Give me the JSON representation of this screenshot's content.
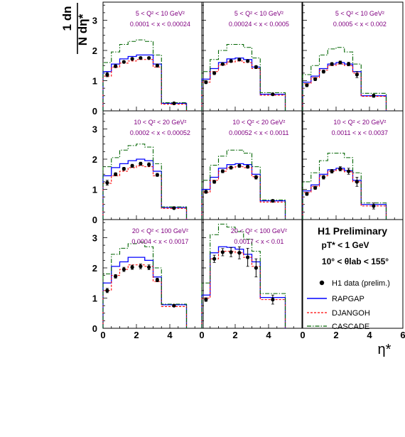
{
  "figure": {
    "ylabel_top": "1 dn",
    "ylabel_bottom": "N dη*",
    "xlabel": "η*",
    "y_ticks": [
      "0",
      "1",
      "2",
      "3"
    ],
    "x_ticks": [
      "0",
      "2",
      "4",
      "6"
    ]
  },
  "colors": {
    "data": "#000000",
    "rapgap": "#0000ff",
    "djangoh": "#ff0000",
    "cascade": "#006400",
    "annotation": "#800080"
  },
  "legend": {
    "title": "H1 Preliminary",
    "cut1": "pT* < 1 GeV",
    "cut2": "10° < θlab < 155°",
    "entries": [
      {
        "name": "H1 data (prelim.)",
        "style": "marker"
      },
      {
        "name": "RAPGAP",
        "style": "solid"
      },
      {
        "name": "DJANGOH",
        "style": "dashed"
      },
      {
        "name": "CASCADE",
        "style": "dashdot"
      }
    ]
  },
  "chart_data": [
    {
      "type": "line",
      "panel": 1,
      "annotation_q2": "5 < Q² < 10 GeV²",
      "annotation_x": "0.0001 < x < 0.00024",
      "xlim": [
        0,
        6
      ],
      "ylim": [
        0,
        3.6
      ],
      "bin_edges": [
        0,
        0.5,
        1,
        1.5,
        2,
        2.5,
        3,
        3.5,
        5
      ],
      "data": {
        "x": [
          0.25,
          0.75,
          1.25,
          1.75,
          2.25,
          2.75,
          3.25,
          4.25
        ],
        "y": [
          1.2,
          1.48,
          1.62,
          1.72,
          1.75,
          1.75,
          1.5,
          0.25
        ],
        "err": [
          0.07,
          0.05,
          0.04,
          0.04,
          0.04,
          0.04,
          0.05,
          0.02
        ]
      },
      "series": [
        {
          "name": "RAPGAP",
          "values": [
            1.3,
            1.55,
            1.72,
            1.8,
            1.85,
            1.85,
            1.55,
            0.25
          ]
        },
        {
          "name": "DJANGOH",
          "values": [
            1.15,
            1.45,
            1.58,
            1.65,
            1.7,
            1.7,
            1.45,
            0.22
          ]
        },
        {
          "name": "CASCADE",
          "values": [
            1.6,
            1.95,
            2.2,
            2.3,
            2.35,
            2.3,
            1.85,
            0.27
          ]
        }
      ]
    },
    {
      "type": "line",
      "panel": 2,
      "annotation_q2": "5 < Q² < 10 GeV²",
      "annotation_x": "0.00024 < x < 0.0005",
      "xlim": [
        0,
        6
      ],
      "ylim": [
        0,
        3.6
      ],
      "bin_edges": [
        0,
        0.5,
        1,
        1.5,
        2,
        2.5,
        3,
        3.5,
        5
      ],
      "data": {
        "x": [
          0.25,
          0.75,
          1.25,
          1.75,
          2.25,
          2.75,
          3.25,
          4.25
        ],
        "y": [
          0.95,
          1.25,
          1.55,
          1.65,
          1.7,
          1.65,
          1.45,
          0.55
        ],
        "err": [
          0.05,
          0.05,
          0.04,
          0.04,
          0.04,
          0.04,
          0.05,
          0.03
        ]
      },
      "series": [
        {
          "name": "RAPGAP",
          "values": [
            1.05,
            1.4,
            1.6,
            1.72,
            1.75,
            1.7,
            1.45,
            0.55
          ]
        },
        {
          "name": "DJANGOH",
          "values": [
            0.95,
            1.3,
            1.52,
            1.62,
            1.65,
            1.6,
            1.4,
            0.52
          ]
        },
        {
          "name": "CASCADE",
          "values": [
            1.3,
            1.7,
            2.0,
            2.2,
            2.2,
            2.1,
            1.75,
            0.6
          ]
        }
      ]
    },
    {
      "type": "line",
      "panel": 3,
      "annotation_q2": "5 < Q² < 10 GeV²",
      "annotation_x": "0.0005 < x < 0.002",
      "xlim": [
        0,
        6
      ],
      "ylim": [
        0,
        3.6
      ],
      "bin_edges": [
        0,
        0.5,
        1,
        1.5,
        2,
        2.5,
        3,
        3.5,
        5
      ],
      "data": {
        "x": [
          0.25,
          0.75,
          1.25,
          1.75,
          2.25,
          2.75,
          3.25,
          4.25
        ],
        "y": [
          0.85,
          1.05,
          1.3,
          1.55,
          1.6,
          1.55,
          1.2,
          0.5
        ],
        "err": [
          0.05,
          0.05,
          0.05,
          0.05,
          0.05,
          0.06,
          0.1,
          0.05
        ]
      },
      "series": [
        {
          "name": "RAPGAP",
          "values": [
            0.95,
            1.15,
            1.4,
            1.55,
            1.6,
            1.55,
            1.3,
            0.5
          ]
        },
        {
          "name": "DJANGOH",
          "values": [
            0.9,
            1.1,
            1.35,
            1.5,
            1.55,
            1.5,
            1.25,
            0.48
          ]
        },
        {
          "name": "CASCADE",
          "values": [
            1.2,
            1.5,
            1.85,
            2.05,
            2.1,
            1.95,
            1.55,
            0.58
          ]
        }
      ]
    },
    {
      "type": "line",
      "panel": 4,
      "annotation_q2": "10 < Q² < 20 GeV²",
      "annotation_x": "0.0002 < x < 0.00052",
      "xlim": [
        0,
        6
      ],
      "ylim": [
        0,
        3.6
      ],
      "bin_edges": [
        0,
        0.5,
        1,
        1.5,
        2,
        2.5,
        3,
        3.5,
        5
      ],
      "data": {
        "x": [
          0.25,
          0.75,
          1.25,
          1.75,
          2.25,
          2.75,
          3.25,
          4.25
        ],
        "y": [
          1.22,
          1.5,
          1.68,
          1.78,
          1.85,
          1.82,
          1.48,
          0.38
        ],
        "err": [
          0.08,
          0.05,
          0.05,
          0.05,
          0.05,
          0.06,
          0.05,
          0.02
        ]
      },
      "series": [
        {
          "name": "RAPGAP",
          "values": [
            1.45,
            1.72,
            1.85,
            1.95,
            2.0,
            1.95,
            1.6,
            0.4
          ]
        },
        {
          "name": "DJANGOH",
          "values": [
            1.2,
            1.45,
            1.6,
            1.72,
            1.78,
            1.75,
            1.45,
            0.37
          ]
        },
        {
          "name": "CASCADE",
          "values": [
            1.75,
            2.05,
            2.3,
            2.45,
            2.5,
            2.4,
            1.85,
            0.42
          ]
        }
      ]
    },
    {
      "type": "line",
      "panel": 5,
      "annotation_q2": "10 < Q² < 20 GeV²",
      "annotation_x": "0.00052 < x < 0.0011",
      "xlim": [
        0,
        6
      ],
      "ylim": [
        0,
        3.6
      ],
      "bin_edges": [
        0,
        0.5,
        1,
        1.5,
        2,
        2.5,
        3,
        3.5,
        5
      ],
      "data": {
        "x": [
          0.25,
          0.75,
          1.25,
          1.75,
          2.25,
          2.75,
          3.25,
          4.25
        ],
        "y": [
          0.92,
          1.25,
          1.6,
          1.72,
          1.78,
          1.75,
          1.4,
          0.62
        ],
        "err": [
          0.05,
          0.05,
          0.05,
          0.05,
          0.05,
          0.05,
          0.06,
          0.04
        ]
      },
      "series": [
        {
          "name": "RAPGAP",
          "values": [
            1.0,
            1.4,
            1.7,
            1.82,
            1.85,
            1.82,
            1.5,
            0.62
          ]
        },
        {
          "name": "DJANGOH",
          "values": [
            0.9,
            1.3,
            1.6,
            1.72,
            1.75,
            1.72,
            1.42,
            0.58
          ]
        },
        {
          "name": "CASCADE",
          "values": [
            1.3,
            1.8,
            2.1,
            2.3,
            2.3,
            2.2,
            1.75,
            0.65
          ]
        }
      ]
    },
    {
      "type": "line",
      "panel": 6,
      "annotation_q2": "10 < Q² < 20 GeV²",
      "annotation_x": "0.0011 < x < 0.0037",
      "xlim": [
        0,
        6
      ],
      "ylim": [
        0,
        3.6
      ],
      "bin_edges": [
        0,
        0.5,
        1,
        1.5,
        2,
        2.5,
        3,
        3.5,
        5
      ],
      "data": {
        "x": [
          0.25,
          0.75,
          1.25,
          1.75,
          2.25,
          2.75,
          3.25,
          4.25
        ],
        "y": [
          0.85,
          1.05,
          1.4,
          1.6,
          1.68,
          1.6,
          1.25,
          0.45
        ],
        "err": [
          0.05,
          0.05,
          0.06,
          0.06,
          0.07,
          0.1,
          0.15,
          0.1
        ]
      },
      "series": [
        {
          "name": "RAPGAP",
          "values": [
            0.95,
            1.15,
            1.5,
            1.65,
            1.7,
            1.62,
            1.3,
            0.5
          ]
        },
        {
          "name": "DJANGOH",
          "values": [
            0.9,
            1.1,
            1.45,
            1.6,
            1.65,
            1.58,
            1.25,
            0.45
          ]
        },
        {
          "name": "CASCADE",
          "values": [
            1.25,
            1.55,
            1.95,
            2.2,
            2.2,
            2.05,
            1.55,
            0.55
          ]
        }
      ]
    },
    {
      "type": "line",
      "panel": 7,
      "annotation_q2": "20 < Q² < 100 GeV²",
      "annotation_x": "0.0004 < x < 0.0017",
      "xlim": [
        0,
        6
      ],
      "ylim": [
        0,
        3.6
      ],
      "bin_edges": [
        0,
        0.5,
        1,
        1.5,
        2,
        2.5,
        3,
        3.5,
        5
      ],
      "data": {
        "x": [
          0.25,
          0.75,
          1.25,
          1.75,
          2.25,
          2.75,
          3.25,
          4.25
        ],
        "y": [
          1.25,
          1.72,
          1.95,
          2.02,
          2.05,
          2.02,
          1.6,
          0.75
        ],
        "err": [
          0.07,
          0.06,
          0.07,
          0.07,
          0.08,
          0.08,
          0.06,
          0.03
        ]
      },
      "series": [
        {
          "name": "RAPGAP",
          "values": [
            1.5,
            2.05,
            2.2,
            2.35,
            2.35,
            2.25,
            1.7,
            0.78
          ]
        },
        {
          "name": "DJANGOH",
          "values": [
            1.25,
            1.75,
            1.95,
            2.1,
            2.1,
            2.05,
            1.55,
            0.72
          ]
        },
        {
          "name": "CASCADE",
          "values": [
            1.8,
            2.45,
            2.65,
            2.8,
            2.85,
            2.7,
            2.0,
            0.8
          ]
        }
      ]
    },
    {
      "type": "line",
      "panel": 8,
      "annotation_q2": "20 < Q² < 100 GeV²",
      "annotation_x": "0.0017 < x < 0.01",
      "xlim": [
        0,
        6
      ],
      "ylim": [
        0,
        3.6
      ],
      "bin_edges": [
        0,
        0.5,
        1,
        1.5,
        2,
        2.5,
        3,
        3.5,
        5
      ],
      "data": {
        "x": [
          0.25,
          0.75,
          1.25,
          1.75,
          2.25,
          2.75,
          3.25,
          4.25
        ],
        "y": [
          0.95,
          2.3,
          2.52,
          2.52,
          2.5,
          2.35,
          2.0,
          0.95
        ],
        "err": [
          0.06,
          0.12,
          0.12,
          0.15,
          0.2,
          0.3,
          0.3,
          0.15
        ]
      },
      "series": [
        {
          "name": "RAPGAP",
          "values": [
            1.1,
            2.5,
            2.7,
            2.68,
            2.62,
            2.45,
            2.2,
            1.02
          ]
        },
        {
          "name": "DJANGOH",
          "values": [
            1.0,
            2.3,
            2.55,
            2.55,
            2.5,
            2.35,
            2.05,
            0.95
          ]
        },
        {
          "name": "CASCADE",
          "values": [
            1.5,
            3.1,
            3.45,
            3.35,
            3.2,
            2.95,
            2.55,
            1.15
          ]
        }
      ]
    }
  ]
}
